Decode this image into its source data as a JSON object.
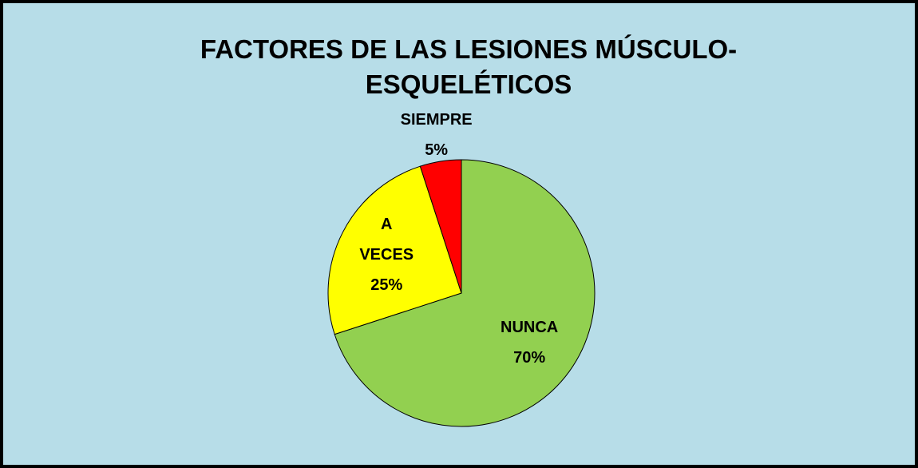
{
  "chart_data": {
    "type": "pie",
    "title": "FACTORES DE LAS LESIONES MÚSCULO-ESQUELÉTICOS",
    "categories": [
      "NUNCA",
      "A VECES",
      "SIEMPRE"
    ],
    "values": [
      70,
      25,
      5
    ],
    "value_labels": [
      "70%",
      "25%",
      "5%"
    ],
    "colors": [
      "#92d050",
      "#ffff00",
      "#ff0000"
    ]
  }
}
